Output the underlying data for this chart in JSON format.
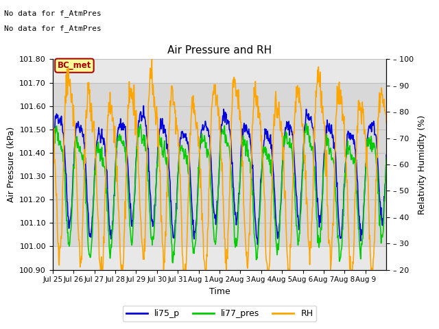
{
  "title": "Air Pressure and RH",
  "xlabel": "Time",
  "ylabel_left": "Air Pressure (kPa)",
  "ylabel_right": "Relativity Humidity (%)",
  "ylim_left": [
    100.9,
    101.8
  ],
  "ylim_right": [
    20,
    100
  ],
  "yticks_left": [
    100.9,
    101.0,
    101.1,
    101.2,
    101.3,
    101.4,
    101.5,
    101.6,
    101.7,
    101.8
  ],
  "yticks_right": [
    20,
    30,
    40,
    50,
    60,
    70,
    80,
    90,
    100
  ],
  "color_li75": "#0000dd",
  "color_li77": "#00cc00",
  "color_rh": "#ffa500",
  "legend_labels": [
    "li75_p",
    "li77_pres",
    "RH"
  ],
  "note1": "No data for f_AtmPres",
  "note2": "No data for f_AtmPres",
  "bc_met_label": "BC_met",
  "bc_met_color": "#aa0000",
  "bc_met_bg": "#ffff99",
  "shaded_ylim": [
    101.0,
    101.7
  ],
  "shaded_color": "#d8d8d8",
  "bg_color": "#e8e8e8",
  "grid_color": "#c0c0c0",
  "x_tick_labels": [
    "Jul 25",
    "Jul 26",
    "Jul 27",
    "Jul 28",
    "Jul 29",
    "Jul 30",
    "Jul 31",
    "Aug 1",
    "Aug 2",
    "Aug 3",
    "Aug 4",
    "Aug 5",
    "Aug 6",
    "Aug 7",
    "Aug 8",
    "Aug 9"
  ],
  "n_days": 16,
  "seed": 42,
  "figsize": [
    6.4,
    4.8
  ],
  "dpi": 100
}
